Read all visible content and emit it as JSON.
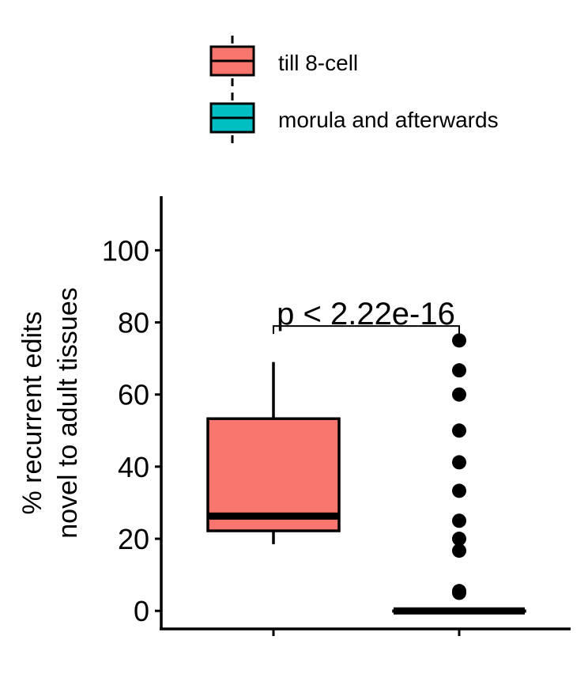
{
  "chart_data": {
    "type": "boxplot",
    "categories": [
      "till 8-cell",
      "morula and afterwards"
    ],
    "colors": {
      "till 8-cell": "#F8766D",
      "morula and afterwards": "#00BFC4"
    },
    "ylabel_line1": "% recurrent edits",
    "ylabel_line2": "novel to adult tissues",
    "ylim": [
      -5,
      115
    ],
    "yticks": [
      "0",
      "20",
      "40",
      "60",
      "80",
      "100"
    ],
    "legend": {
      "position": "top",
      "entries": [
        {
          "label": "till 8-cell",
          "color": "#F8766D"
        },
        {
          "label": "morula and afterwards",
          "color": "#00BFC4"
        }
      ]
    },
    "boxes": [
      {
        "name": "till 8-cell",
        "whisker_low": 18.5,
        "q1": 22.2,
        "median": 26.3,
        "q3": 53.3,
        "whisker_high": 69,
        "outliers": []
      },
      {
        "name": "morula and afterwards",
        "whisker_low": 0,
        "q1": 0,
        "median": 0,
        "q3": 0,
        "whisker_high": 0,
        "outliers": [
          5,
          5.5,
          16.7,
          20,
          25,
          33.3,
          41.2,
          50,
          60,
          66.7,
          75
        ]
      }
    ],
    "comparison": {
      "label": "p < 2.22e-16",
      "y": 79
    }
  }
}
